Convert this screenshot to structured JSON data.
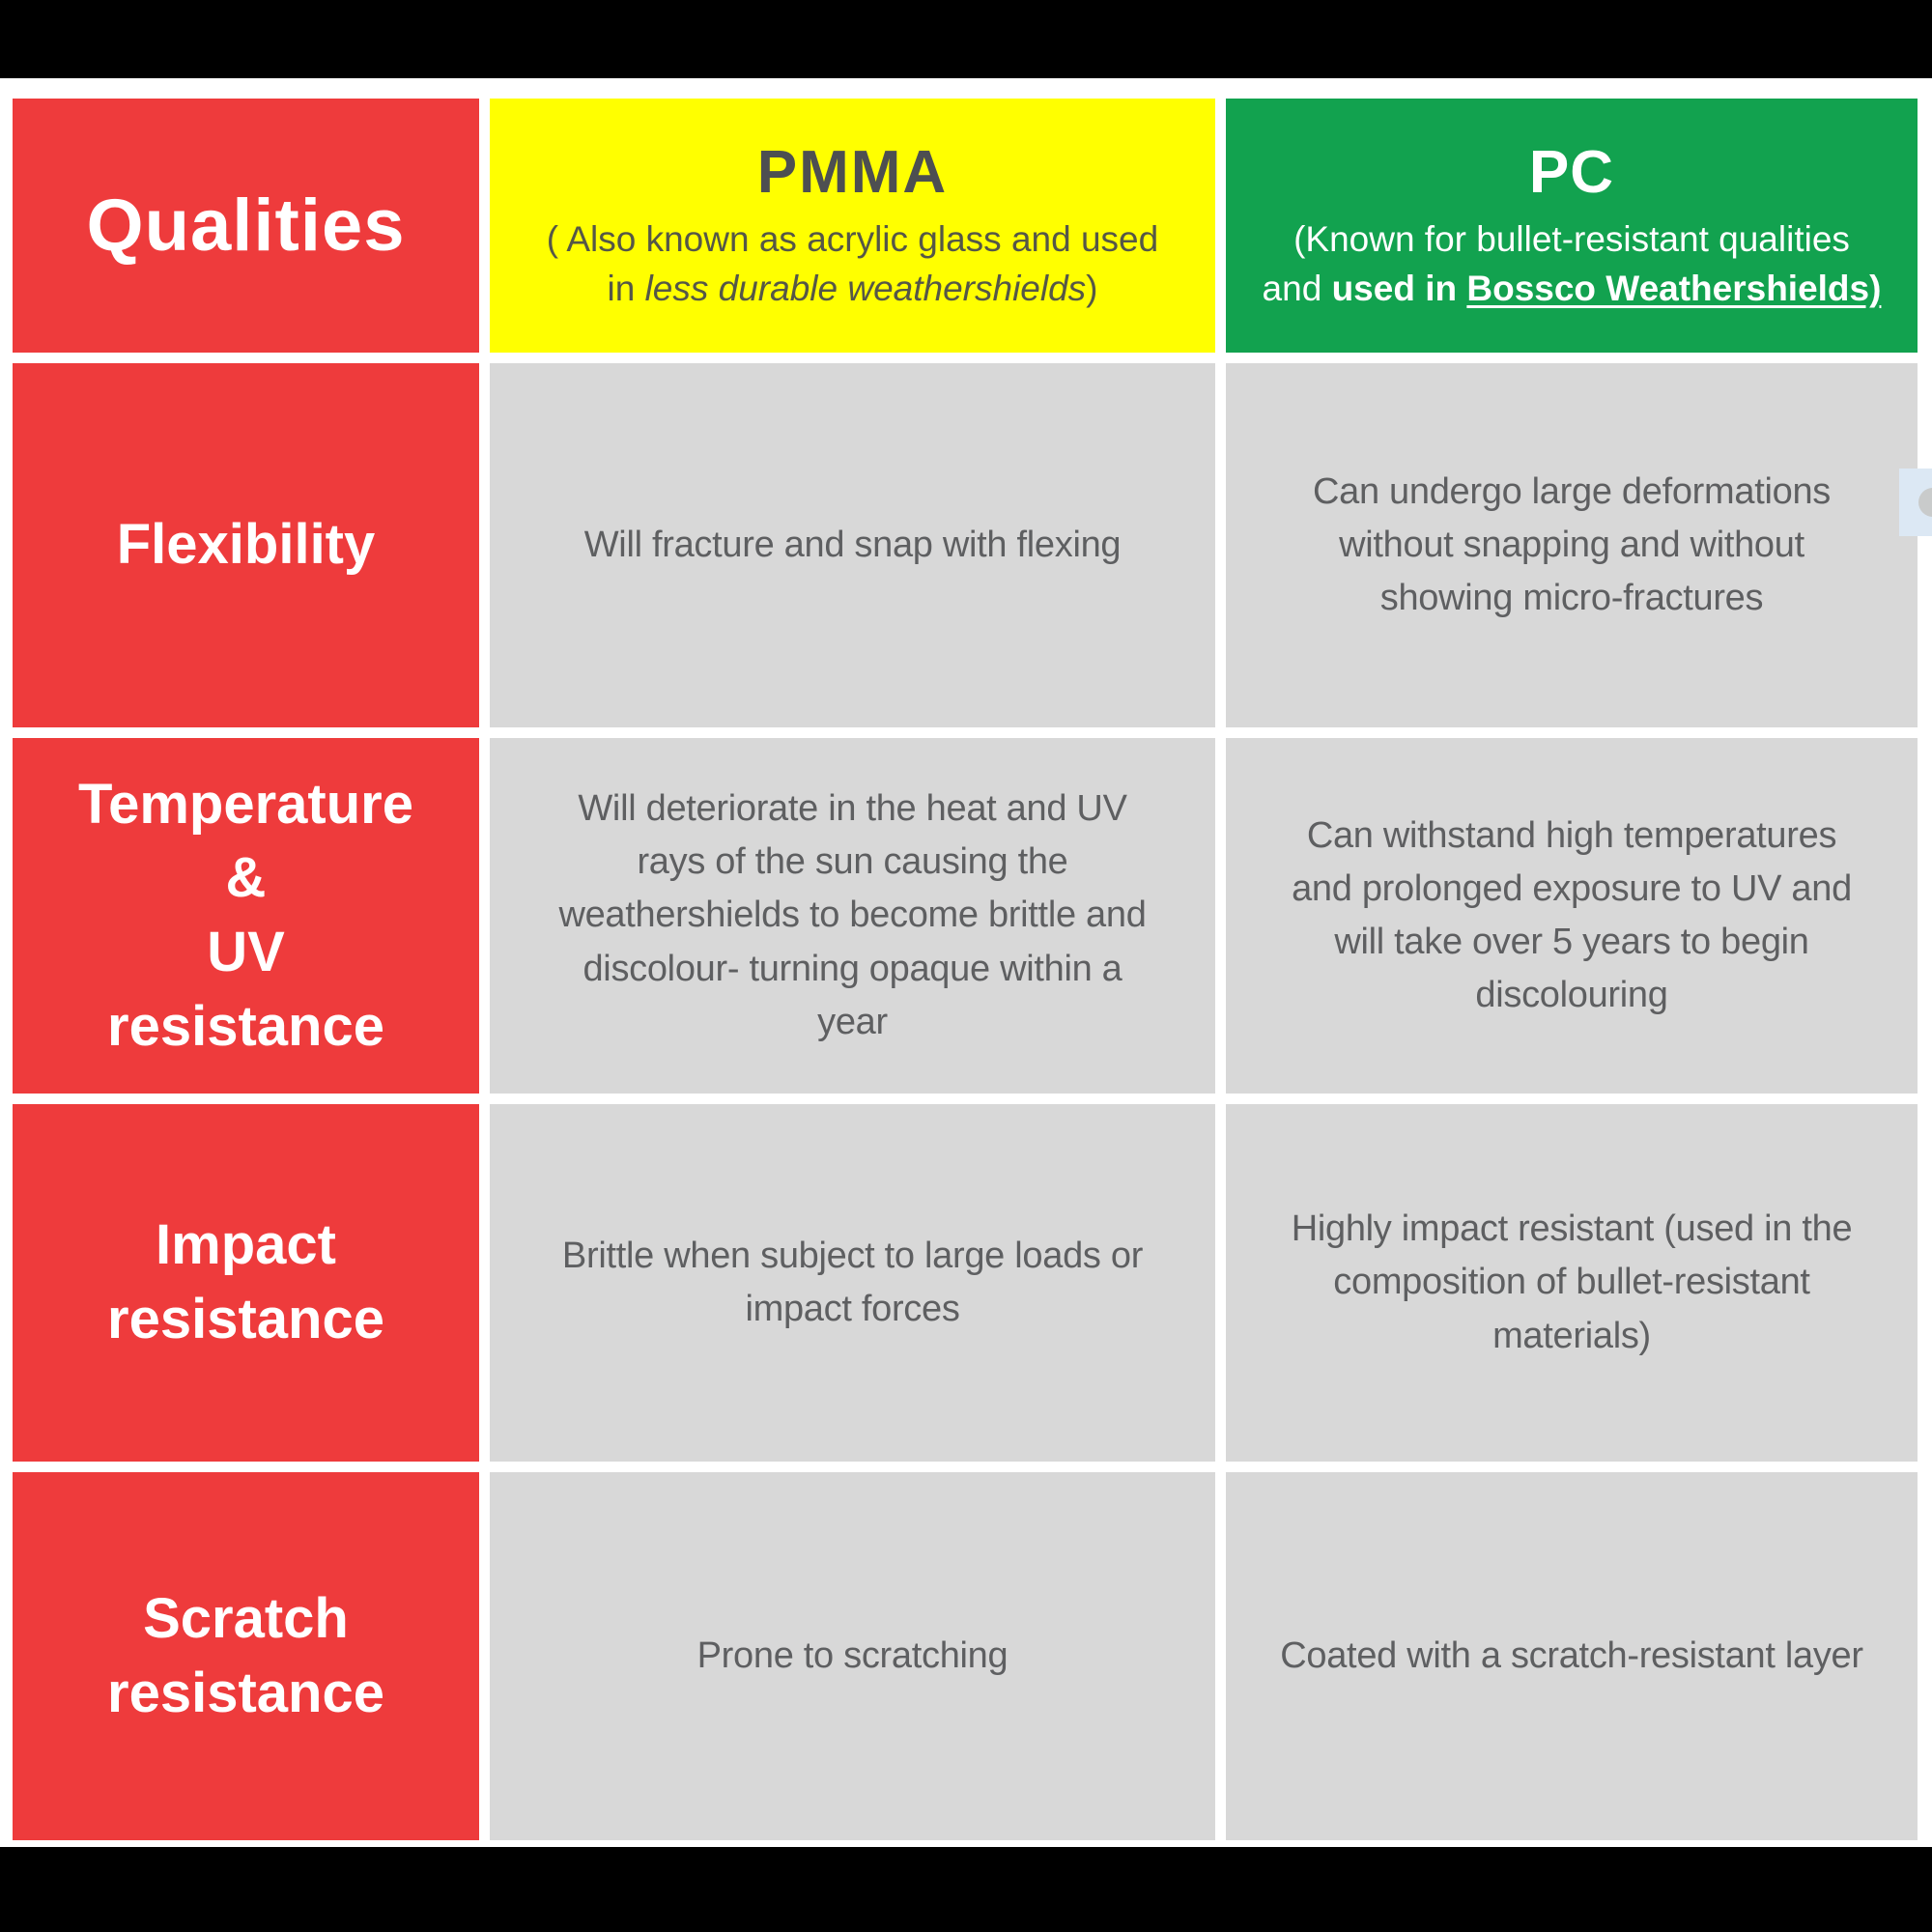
{
  "colors": {
    "letterbox_black": "#000000",
    "qualities_red": "#ee3b3c",
    "pmma_yellow": "#ffff00",
    "pc_green": "#12a24f",
    "cell_gray": "#d8d8d8",
    "body_text_gray": "#5e5f61",
    "pmma_text_olive": "#555747",
    "side_panel_blue": "#dce8f4"
  },
  "header": {
    "qualities_label": "Qualities",
    "pmma": {
      "title": "PMMA",
      "sub_line1": "( Also known as acrylic glass and used",
      "sub_line2_pre": "in ",
      "sub_line2_italic": "less durable weathershields",
      "sub_line2_close": ")"
    },
    "pc": {
      "title": "PC",
      "sub_line1": "(Known for bullet-resistant qualities",
      "sub_line2_normal": "and ",
      "sub_line2_bold": "used in ",
      "sub_line2_underlined": "Bossco Weathershields)"
    }
  },
  "rows": [
    {
      "label": "Flexibility",
      "pmma": "Will fracture and snap with flexing",
      "pc": "Can undergo large deformations\nwithout snapping and without\nshowing micro-fractures"
    },
    {
      "label": "Temperature\n&\nUV\nresistance",
      "pmma": "Will deteriorate in the heat and UV\nrays of the sun causing the\nweathershields to become brittle and\ndiscolour- turning opaque within a\nyear",
      "pc": "Can withstand high temperatures\nand prolonged exposure to UV and\nwill take over 5 years to begin\ndiscolouring"
    },
    {
      "label": "Impact\nresistance",
      "pmma": "Brittle when subject to large loads or\nimpact forces",
      "pc": "Highly impact resistant (used in the\ncomposition of bullet-resistant\nmaterials)"
    },
    {
      "label": "Scratch\nresistance",
      "pmma": "Prone to scratching",
      "pc": "Coated with a scratch-resistant layer"
    }
  ],
  "chart_data": {
    "type": "table",
    "title": "Qualities comparison: PMMA vs PC",
    "columns": [
      "Qualities",
      "PMMA ( Also known as acrylic glass and used in less durable weathershields)",
      "PC (Known for bullet-resistant qualities and used in Bossco Weathershields)"
    ],
    "rows": [
      [
        "Flexibility",
        "Will fracture and snap with flexing",
        "Can undergo large deformations without snapping and without showing micro-fractures"
      ],
      [
        "Temperature & UV resistance",
        "Will deteriorate in the heat and UV rays of the sun causing the weathershields to become brittle and discolour- turning opaque within a year",
        "Can withstand high temperatures and prolonged exposure to UV and will take over 5 years to begin discolouring"
      ],
      [
        "Impact resistance",
        "Brittle when subject to large loads or impact forces",
        "Highly impact resistant (used in the composition of bullet-resistant materials)"
      ],
      [
        "Scratch resistance",
        "Prone to scratching",
        "Coated with a scratch-resistant layer"
      ]
    ],
    "layout": {
      "header_colors": [
        "#ee3b3c",
        "#ffff00",
        "#12a24f"
      ],
      "body_color": "#d8d8d8",
      "grid": "white 11px dividers"
    }
  }
}
